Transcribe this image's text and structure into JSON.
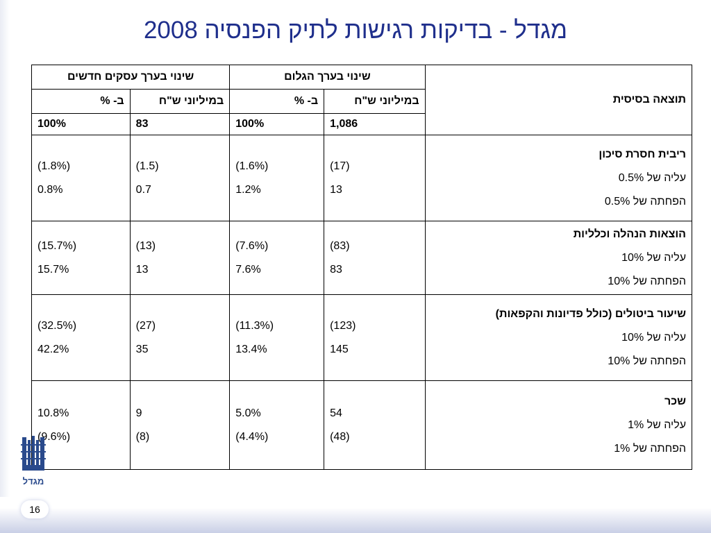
{
  "title": "מגדל - בדיקות רגישות לתיק הפנסיה 2008",
  "header": {
    "group_new_business": "שינוי בערך עסקים חדשים",
    "group_embedded": "שינוי בערך הגלום",
    "base_result": "תוצאה בסיסית",
    "col_millions": "במיליוני ש\"ח",
    "col_percent": "ב- %"
  },
  "base": {
    "embedded_millions": "1,086",
    "embedded_percent": "100%",
    "new_business_millions": "83",
    "new_business_percent": "100%"
  },
  "sections": [
    {
      "title": "ריבית חסרת סיכון",
      "rows": [
        {
          "label": "עליה של 0.5%",
          "em_m": "(17)",
          "em_p": "(1.6%)",
          "nb_m": "(1.5)",
          "nb_p": "(1.8%)"
        },
        {
          "label": "הפחתה של 0.5%",
          "em_m": "13",
          "em_p": "1.2%",
          "nb_m": "0.7",
          "nb_p": "0.8%"
        }
      ]
    },
    {
      "title": "הוצאות הנהלה וכלליות",
      "rows": [
        {
          "label": "עליה של 10%",
          "em_m": "(83)",
          "em_p": "(7.6%)",
          "nb_m": "(13)",
          "nb_p": "(15.7%)"
        },
        {
          "label": "הפחתה של 10%",
          "em_m": "83",
          "em_p": "7.6%",
          "nb_m": "13",
          "nb_p": "15.7%"
        }
      ]
    },
    {
      "title": "שיעור ביטולים (כולל פדיונות והקפאות)",
      "rows": [
        {
          "label": "עליה של 10%",
          "em_m": "(123)",
          "em_p": "(11.3%)",
          "nb_m": "(27)",
          "nb_p": "(32.5%)"
        },
        {
          "label": "הפחתה של 10%",
          "em_m": "145",
          "em_p": "13.4%",
          "nb_m": "35",
          "nb_p": "42.2%"
        }
      ]
    },
    {
      "title": "שכר",
      "rows": [
        {
          "label": "עליה של 1%",
          "em_m": "54",
          "em_p": "5.0%",
          "nb_m": "9",
          "nb_p": "10.8%"
        },
        {
          "label": "הפחתה של 1%",
          "em_m": "(48)",
          "em_p": "(4.4%)",
          "nb_m": "(8)",
          "nb_p": "(9.6%)"
        }
      ]
    }
  ],
  "logo_text": "מגדל",
  "page_number": "16",
  "colors": {
    "title": "#1f2f8c",
    "logo": "#2a4a8c"
  }
}
